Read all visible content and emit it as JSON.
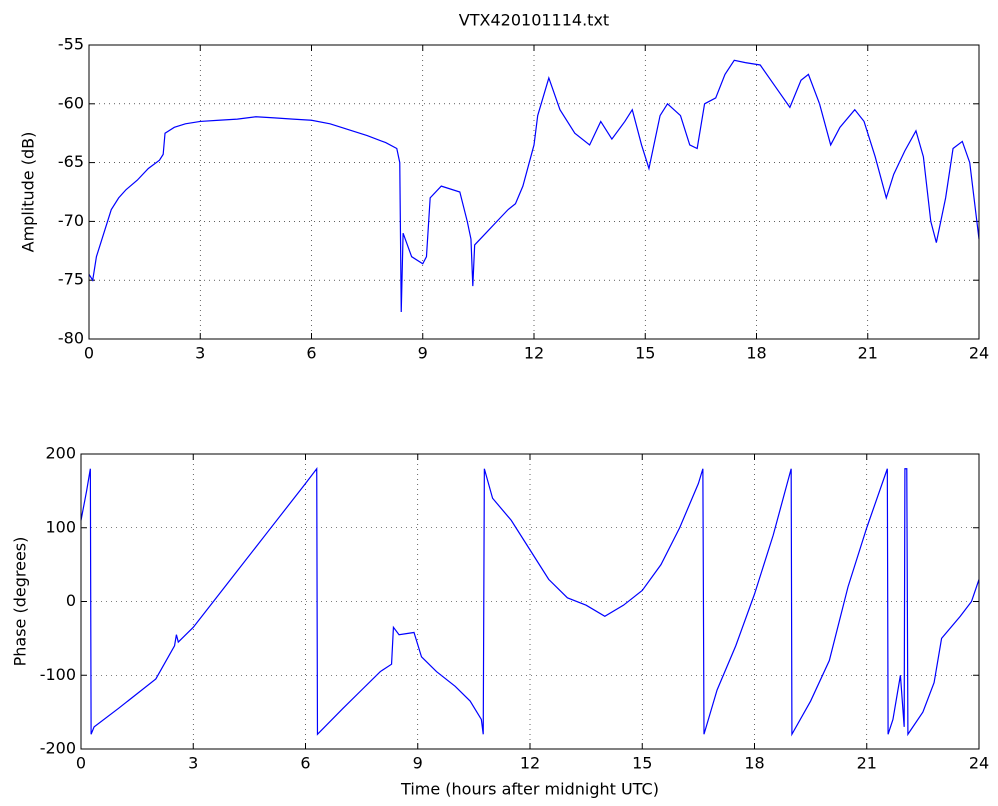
{
  "chart_data": [
    {
      "type": "line",
      "title": "VTX420101114.txt",
      "ylabel": "Amplitude (dB)",
      "x": [
        0,
        0.1,
        0.2,
        0.4,
        0.6,
        0.8,
        1.0,
        1.3,
        1.6,
        1.9,
        2.0,
        2.05,
        2.3,
        2.6,
        3,
        3.5,
        4,
        4.5,
        5,
        5.5,
        6,
        6.5,
        7,
        7.5,
        8,
        8.3,
        8.38,
        8.42,
        8.47,
        8.7,
        9,
        9.1,
        9.2,
        9.5,
        10,
        10.2,
        10.3,
        10.35,
        10.4,
        10.7,
        11,
        11.3,
        11.5,
        11.7,
        12,
        12.1,
        12.4,
        12.7,
        13.1,
        13.5,
        13.8,
        14.1,
        14.45,
        14.65,
        14.9,
        15.1,
        15.4,
        15.6,
        15.95,
        16.2,
        16.4,
        16.6,
        16.9,
        17.15,
        17.4,
        17.7,
        18.1,
        18.5,
        18.9,
        19.2,
        19.4,
        19.7,
        20,
        20.25,
        20.65,
        20.9,
        21.2,
        21.5,
        21.7,
        22,
        22.3,
        22.5,
        22.7,
        22.85,
        23.1,
        23.3,
        23.55,
        23.75,
        24
      ],
      "series": [
        {
          "color": "#0000ff",
          "values": [
            -74.5,
            -75,
            -73,
            -71,
            -69,
            -68,
            -67.3,
            -66.5,
            -65.5,
            -64.8,
            -64.3,
            -62.5,
            -62,
            -61.7,
            -61.5,
            -61.4,
            -61.3,
            -61.1,
            -61.2,
            -61.3,
            -61.4,
            -61.7,
            -62.2,
            -62.7,
            -63.3,
            -63.8,
            -65,
            -77.7,
            -71,
            -73,
            -73.6,
            -73,
            -68,
            -67,
            -67.5,
            -70,
            -71.5,
            -75.5,
            -72,
            -71,
            -70,
            -69,
            -68.5,
            -67,
            -63.5,
            -61,
            -57.8,
            -60.5,
            -62.5,
            -63.5,
            -61.5,
            -63,
            -61.5,
            -60.5,
            -63.5,
            -65.5,
            -61,
            -60,
            -61,
            -63.5,
            -63.8,
            -60,
            -59.5,
            -57.5,
            -56.3,
            -56.5,
            -56.7,
            -58.5,
            -60.3,
            -58,
            -57.5,
            -60,
            -63.5,
            -62,
            -60.5,
            -61.5,
            -64.5,
            -68,
            -66,
            -64,
            -62.3,
            -64.5,
            -70,
            -71.8,
            -68,
            -63.8,
            -63.2,
            -65,
            -71.5
          ]
        }
      ],
      "xlim": [
        0,
        24
      ],
      "xticks": [
        0,
        3,
        6,
        9,
        12,
        15,
        18,
        21,
        24
      ],
      "ylim": [
        -80,
        -55
      ],
      "yticks": [
        -80,
        -75,
        -70,
        -65,
        -60,
        -55
      ],
      "grid": true
    },
    {
      "type": "line",
      "xlabel": "Time (hours after midnight UTC)",
      "ylabel": "Phase (degrees)",
      "x": [
        0,
        0.15,
        0.25,
        0.27,
        0.35,
        1,
        2,
        2.5,
        2.55,
        2.6,
        3,
        4,
        5,
        6,
        6.3,
        6.32,
        7,
        7.5,
        8,
        8.3,
        8.35,
        8.5,
        8.9,
        9.1,
        9.5,
        10,
        10.4,
        10.7,
        10.75,
        10.78,
        11,
        11.5,
        12,
        12.5,
        13,
        13.5,
        14,
        14.5,
        15,
        15.5,
        16,
        16.5,
        16.62,
        16.65,
        17,
        17.5,
        18,
        18.5,
        18.98,
        19.0,
        19.5,
        20,
        20.5,
        21,
        21.55,
        21.57,
        21.7,
        21.9,
        22.0,
        22.02,
        22.07,
        22.1,
        22.5,
        22.8,
        23,
        23.5,
        23.8,
        24
      ],
      "series": [
        {
          "color": "#0000ff",
          "values": [
            110,
            150,
            180,
            -180,
            -170,
            -145,
            -105,
            -60,
            -45,
            -55,
            -35,
            30,
            95,
            160,
            180,
            -180,
            -145,
            -120,
            -95,
            -85,
            -35,
            -45,
            -42,
            -75,
            -95,
            -115,
            -135,
            -160,
            -180,
            180,
            140,
            110,
            70,
            30,
            5,
            -5,
            -20,
            -5,
            15,
            50,
            100,
            160,
            180,
            -180,
            -120,
            -60,
            10,
            90,
            180,
            -180,
            -135,
            -80,
            20,
            100,
            180,
            -180,
            -160,
            -100,
            -170,
            180,
            180,
            -180,
            -150,
            -110,
            -50,
            -20,
            0,
            30
          ]
        }
      ],
      "xlim": [
        0,
        24
      ],
      "xticks": [
        0,
        3,
        6,
        9,
        12,
        15,
        18,
        21,
        24
      ],
      "ylim": [
        -200,
        200
      ],
      "yticks": [
        -200,
        -100,
        0,
        100,
        200
      ],
      "grid": true
    }
  ]
}
